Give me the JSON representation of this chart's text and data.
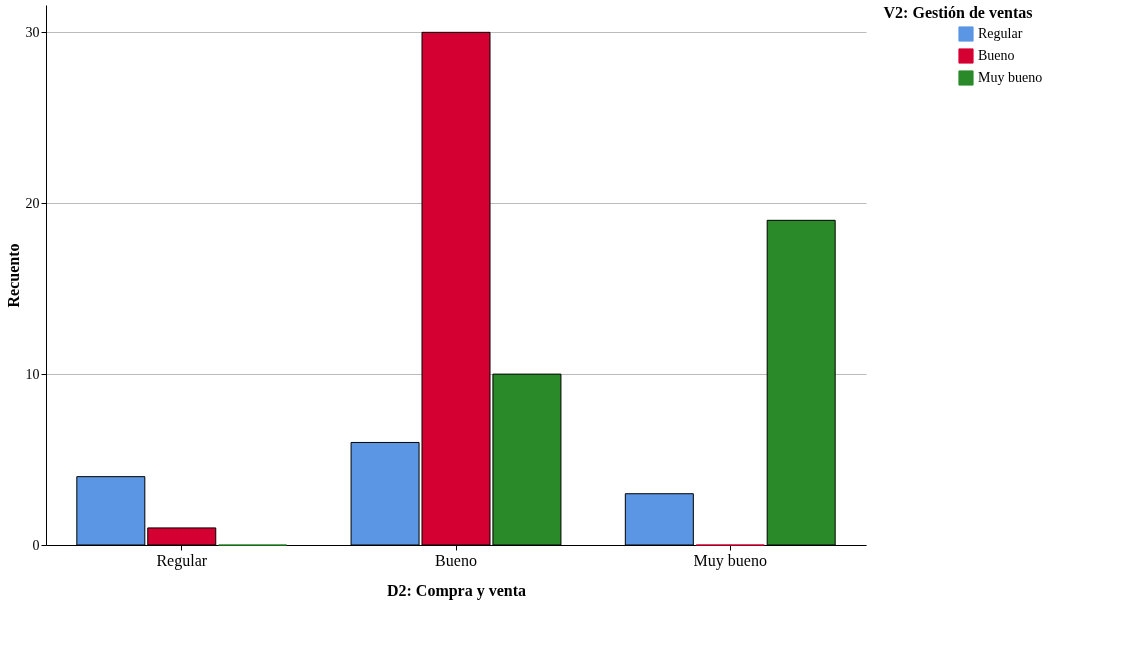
{
  "chart_data": {
    "type": "bar",
    "xlabel": "D2: Compra y venta",
    "ylabel": "Recuento",
    "legend_title": "V2: Gestión de ventas",
    "categories": [
      "Regular",
      "Bueno",
      "Muy bueno"
    ],
    "series": [
      {
        "name": "Regular",
        "color": "#5a96e3",
        "values": [
          4,
          6,
          3
        ]
      },
      {
        "name": "Bueno",
        "color": "#d50032",
        "values": [
          1,
          30,
          0
        ]
      },
      {
        "name": "Muy bueno",
        "color": "#2a8a2a",
        "values": [
          0,
          10,
          19
        ]
      }
    ],
    "ylim": [
      0,
      31.6
    ],
    "yticks": [
      0,
      10,
      20,
      30
    ],
    "grid": "y",
    "legend": "top right"
  }
}
